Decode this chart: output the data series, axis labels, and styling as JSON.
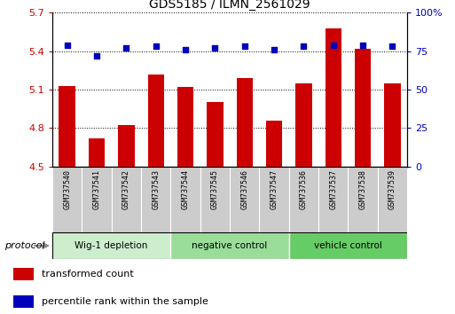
{
  "title": "GDS5185 / ILMN_2561029",
  "categories": [
    "GSM737540",
    "GSM737541",
    "GSM737542",
    "GSM737543",
    "GSM737544",
    "GSM737545",
    "GSM737546",
    "GSM737547",
    "GSM737536",
    "GSM737537",
    "GSM737538",
    "GSM737539"
  ],
  "bar_values": [
    5.13,
    4.72,
    4.82,
    5.22,
    5.12,
    5.0,
    5.19,
    4.86,
    5.15,
    5.58,
    5.42,
    5.15
  ],
  "dot_values": [
    79,
    72,
    77,
    78,
    76,
    77,
    78,
    76,
    78,
    79,
    79,
    78
  ],
  "ylim_left": [
    4.5,
    5.7
  ],
  "ylim_right": [
    0,
    100
  ],
  "yticks_left": [
    4.5,
    4.8,
    5.1,
    5.4,
    5.7
  ],
  "yticks_right": [
    0,
    25,
    50,
    75,
    100
  ],
  "bar_color": "#cc0000",
  "dot_color": "#0000bb",
  "groups": [
    {
      "label": "Wig-1 depletion",
      "start": 0,
      "end": 3
    },
    {
      "label": "negative control",
      "start": 4,
      "end": 7
    },
    {
      "label": "vehicle control",
      "start": 8,
      "end": 11
    }
  ],
  "group_colors": [
    "#cceecc",
    "#99dd99",
    "#66cc66"
  ],
  "legend_red_label": "transformed count",
  "legend_blue_label": "percentile rank within the sample",
  "protocol_label": "protocol",
  "tick_color_left": "#cc0000",
  "tick_color_right": "#0000bb",
  "bar_width": 0.55,
  "figsize": [
    5.13,
    3.54
  ],
  "dpi": 100
}
